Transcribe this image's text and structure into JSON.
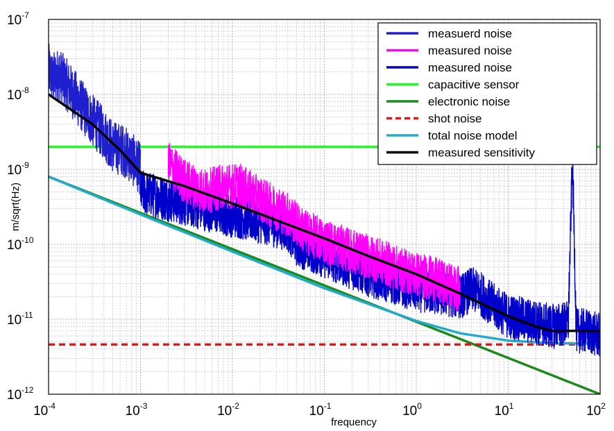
{
  "chart_data": {
    "type": "line",
    "xlabel": "frequency",
    "ylabel": "m/sqrt(Hz)",
    "xscale": "log",
    "yscale": "log",
    "xlim": [
      0.0001,
      100
    ],
    "ylim": [
      1e-12,
      1e-07
    ],
    "grid": true,
    "legend_position": "top-right",
    "x_ticks": [
      {
        "value": 0.0001,
        "base": "10",
        "exp": "-4"
      },
      {
        "value": 0.001,
        "base": "10",
        "exp": "-3"
      },
      {
        "value": 0.01,
        "base": "10",
        "exp": "-2"
      },
      {
        "value": 0.1,
        "base": "10",
        "exp": "-1"
      },
      {
        "value": 1,
        "base": "10",
        "exp": "0"
      },
      {
        "value": 10,
        "base": "10",
        "exp": "1"
      },
      {
        "value": 100,
        "base": "10",
        "exp": "2"
      }
    ],
    "y_ticks": [
      {
        "value": 1e-12,
        "base": "10",
        "exp": "-12"
      },
      {
        "value": 1e-11,
        "base": "10",
        "exp": "-11"
      },
      {
        "value": 1e-10,
        "base": "10",
        "exp": "-10"
      },
      {
        "value": 1e-09,
        "base": "10",
        "exp": "-9"
      },
      {
        "value": 1e-08,
        "base": "10",
        "exp": "-8"
      },
      {
        "value": 1e-07,
        "base": "10",
        "exp": "-7"
      }
    ],
    "series": [
      {
        "name": "measuerd noise",
        "color": "#1f1fd0",
        "style": "solid",
        "x": [
          0.0001,
          0.00011,
          0.00013,
          0.00016,
          0.0002,
          0.00025,
          0.0003,
          0.0004,
          0.0005,
          0.00065,
          0.0008,
          0.001
        ],
        "y": [
          2.2e-08,
          1.6e-08,
          1.9e-08,
          1.3e-08,
          9e-09,
          6e-09,
          4.5e-09,
          3e-09,
          2e-09,
          1.8e-09,
          1.4e-09,
          1e-09
        ],
        "noise": 0.35
      },
      {
        "name": "measured noise",
        "color": "#ff00ff",
        "style": "solid",
        "x": [
          0.002,
          0.003,
          0.005,
          0.008,
          0.012,
          0.02,
          0.04,
          0.06,
          0.1,
          0.2,
          0.4,
          0.7,
          1.0,
          1.5,
          2.0,
          3.0
        ],
        "y": [
          1.2e-09,
          7e-10,
          5e-10,
          6e-10,
          6e-10,
          4e-10,
          2.5e-10,
          1.5e-10,
          1.1e-10,
          8e-11,
          6e-11,
          4.5e-11,
          4e-11,
          3.5e-11,
          3e-11,
          2.5e-11
        ],
        "noise": 0.3
      },
      {
        "name": "measured noise",
        "color": "#0000cc",
        "style": "solid",
        "x": [
          0.001,
          0.002,
          0.004,
          0.008,
          0.015,
          0.025,
          0.04,
          0.05,
          0.1,
          0.3,
          1.0,
          3.0,
          4.0,
          5.0,
          7.0,
          10.0,
          20.0,
          30.0,
          45.0,
          50.0,
          55.0,
          70.0,
          100.0
        ],
        "y": [
          5e-10,
          4e-10,
          3.2e-10,
          2.6e-10,
          2.2e-10,
          1.9e-10,
          1.6e-10,
          1e-10,
          7e-11,
          4e-11,
          2.5e-11,
          2e-11,
          2.5e-11,
          2.2e-11,
          1.5e-11,
          1.1e-11,
          9e-12,
          8e-12,
          9e-12,
          1.5e-09,
          7e-12,
          7e-12,
          6e-12
        ],
        "noise": 0.3
      },
      {
        "name": "capacitive sensor",
        "color": "#33ee33",
        "style": "solid",
        "x": [
          0.0001,
          100
        ],
        "y": [
          2e-09,
          2e-09
        ]
      },
      {
        "name": "electronic noise",
        "color": "#1a8a1a",
        "style": "solid",
        "x": [
          0.0001,
          100
        ],
        "y": [
          8e-10,
          1e-12
        ]
      },
      {
        "name": "shot noise",
        "color": "#ee1111",
        "style": "dashed",
        "x": [
          0.0001,
          100
        ],
        "y": [
          4.6e-12,
          4.6e-12
        ]
      },
      {
        "name": "total noise model",
        "color": "#22aacc",
        "style": "solid",
        "x": [
          0.0001,
          0.001,
          0.01,
          0.1,
          1.0,
          3.0,
          10.0,
          30.0,
          100.0
        ],
        "y": [
          8e-10,
          2.5e-10,
          8e-11,
          2.6e-11,
          9.5e-12,
          6.5e-12,
          5.2e-12,
          4.8e-12,
          4.7e-12
        ]
      },
      {
        "name": "measured sensitivity",
        "color": "#000000",
        "style": "solid",
        "x": [
          0.0001,
          0.0003,
          0.0006,
          0.001,
          0.003,
          0.01,
          0.03,
          0.1,
          0.3,
          1.0,
          3.0,
          10.0,
          20.0,
          30.0,
          100.0
        ],
        "y": [
          1e-08,
          4e-09,
          1.8e-09,
          9e-10,
          6e-10,
          3.5e-10,
          2.1e-10,
          1.2e-10,
          7e-11,
          4e-11,
          2.2e-11,
          1.1e-11,
          8e-12,
          7e-12,
          7e-12
        ]
      }
    ]
  }
}
